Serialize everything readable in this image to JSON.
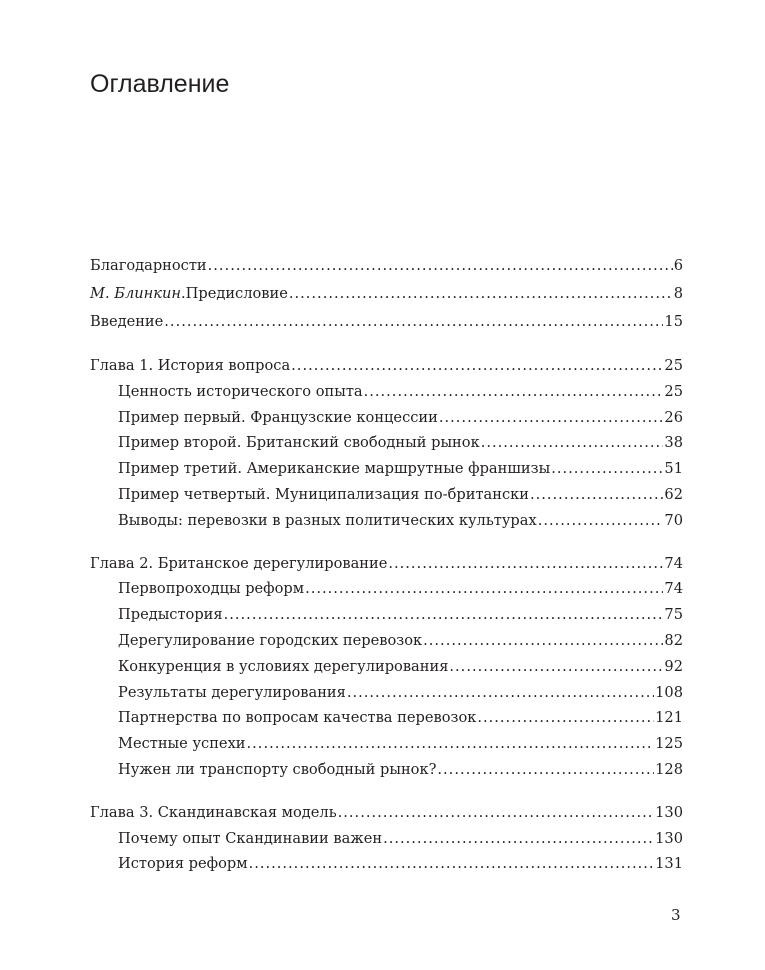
{
  "title": "Оглавление",
  "front": [
    {
      "author": "",
      "title": "Благодарности",
      "page": "6"
    },
    {
      "author": "М. Блинкин.",
      "title": " Предисловие",
      "page": "8"
    },
    {
      "author": "",
      "title": "Введение",
      "page": "15"
    }
  ],
  "chapters": [
    {
      "title": "Глава 1. История вопроса",
      "page": "25",
      "sections": [
        {
          "title": "Ценность исторического опыта",
          "page": "25"
        },
        {
          "title": "Пример первый. Французские концессии",
          "page": "26"
        },
        {
          "title": "Пример второй. Британский свободный рынок",
          "page": "38"
        },
        {
          "title": "Пример третий. Американские маршрутные франшизы",
          "page": "51"
        },
        {
          "title": "Пример четвертый. Муниципализация по-британски",
          "page": "62"
        },
        {
          "title": "Выводы: перевозки в разных политических культурах",
          "page": "70"
        }
      ]
    },
    {
      "title": "Глава 2. Британское дерегулирование",
      "page": "74",
      "sections": [
        {
          "title": "Первопроходцы реформ",
          "page": "74"
        },
        {
          "title": "Предыстория",
          "page": "75"
        },
        {
          "title": "Дерегулирование городских перевозок",
          "page": "82"
        },
        {
          "title": "Конкуренция в условиях дерегулирования",
          "page": "92"
        },
        {
          "title": "Результаты дерегулирования",
          "page": "108"
        },
        {
          "title": "Партнерства по вопросам качества перевозок",
          "page": "121"
        },
        {
          "title": "Местные успехи",
          "page": "125"
        },
        {
          "title": "Нужен ли транспорту свободный рынок?",
          "page": "128"
        }
      ]
    },
    {
      "title": "Глава 3. Скандинавская модель",
      "page": "130",
      "sections": [
        {
          "title": "Почему опыт Скандинавии важен",
          "page": "130"
        },
        {
          "title": "История реформ",
          "page": "131"
        }
      ]
    }
  ],
  "page_number": "3"
}
